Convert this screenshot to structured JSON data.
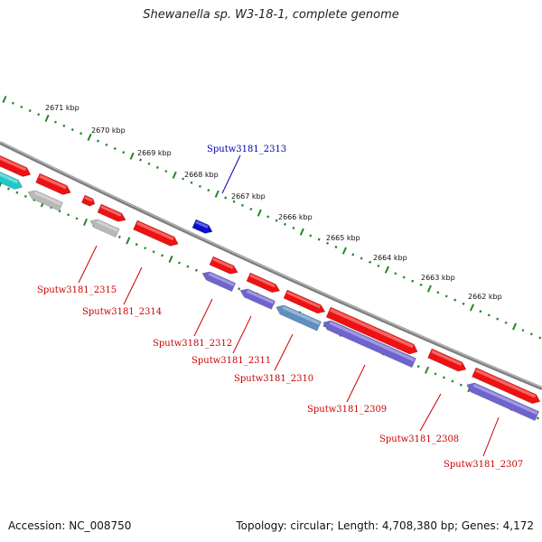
{
  "title": "Shewanella sp. W3-18-1, complete genome",
  "footer": {
    "accession": "Accession: NC_008750",
    "summary": "Topology: circular; Length: 4,708,380 bp; Genes: 4,172"
  },
  "colors": {
    "red_gene": "#ee1111",
    "grey_gene": "#b8b8b8",
    "blue_gene": "#0a10d0",
    "purple_gene": "#6f63cf",
    "cyan_gene": "#22c8c8",
    "steel_gene": "#5f8fbf",
    "backbone": "#7f7f7f",
    "tick": "#228822",
    "label_red": "#cc0000",
    "label_blue": "#0000aa"
  },
  "ticks": [
    "2671 kbp",
    "2670 kbp",
    "2669 kbp",
    "2668 kbp",
    "2667 kbp",
    "2666 kbp",
    "2665 kbp",
    "2664 kbp",
    "2663 kbp",
    "2662 kbp"
  ],
  "gene_labels": [
    {
      "text": "Sputw3181_2313",
      "color": "blue"
    },
    {
      "text": "Sputw3181_2315",
      "color": "red"
    },
    {
      "text": "Sputw3181_2314",
      "color": "red"
    },
    {
      "text": "Sputw3181_2312",
      "color": "red"
    },
    {
      "text": "Sputw3181_2311",
      "color": "red"
    },
    {
      "text": "Sputw3181_2310",
      "color": "red"
    },
    {
      "text": "Sputw3181_2309",
      "color": "red"
    },
    {
      "text": "Sputw3181_2308",
      "color": "red"
    },
    {
      "text": "Sputw3181_2307",
      "color": "red"
    }
  ]
}
